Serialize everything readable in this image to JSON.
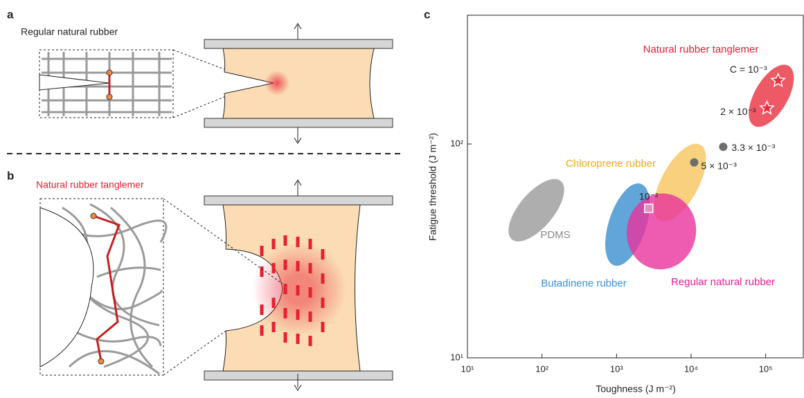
{
  "panels": [
    {
      "label": "a",
      "title": "Regular natural rubber"
    },
    {
      "label": "b",
      "title": "Natural rubber tanglemer"
    }
  ],
  "chart_data": {
    "type": "scatter",
    "panel_label": "c",
    "x_label": "Toughness (J m⁻²)",
    "y_label": "Fatigue threshold (J m⁻²)",
    "log_x": true,
    "log_y": true,
    "xlim": [
      10,
      320000
    ],
    "ylim": [
      10,
      400
    ],
    "xticks": [
      {
        "value": 10,
        "label": "10¹"
      },
      {
        "value": 100,
        "label": "10²"
      },
      {
        "value": 1000,
        "label": "10³"
      },
      {
        "value": 10000,
        "label": "10⁴"
      },
      {
        "value": 100000,
        "label": "10⁵"
      }
    ],
    "yticks": [
      {
        "value": 10,
        "label": "10¹"
      },
      {
        "value": 100,
        "label": "10²"
      }
    ],
    "points": {
      "x": [
        147000,
        104000,
        27000,
        11000,
        2700
      ],
      "values": [
        198,
        147,
        97,
        82,
        50
      ],
      "point_labels": [
        "C = 10⁻³",
        "2 × 10⁻³",
        "3.3 × 10⁻³",
        "5 × 10⁻³",
        "10⁻²"
      ],
      "markers": [
        "star",
        "star",
        "circle",
        "circle",
        "square"
      ],
      "colors": [
        "#e8303f",
        "#e8303f",
        "#6e6e6e",
        "#6e6e6e",
        "#e88fc0"
      ]
    },
    "regions": [
      {
        "name": "Natural rubber tanglemer",
        "color": "#e8303f",
        "label_color": "#e02030",
        "x": 119000,
        "y": 168
      },
      {
        "name": "Chloroprene rubber",
        "color": "#f7c45e",
        "label_color": "#f0aa10",
        "x": 7100,
        "y": 66
      },
      {
        "name": "PDMS",
        "color": "#9a9a9a",
        "label_color": "#8a8a8a",
        "x": 84,
        "y": 49
      },
      {
        "name": "Butadinene rubber",
        "color": "#3a8fcf",
        "label_color": "#3a8fcf",
        "x": 1400,
        "y": 42
      },
      {
        "name": "Regular natural rubber",
        "color": "#e8339c",
        "label_color": "#e0208f",
        "x": 4000,
        "y": 39
      }
    ]
  }
}
